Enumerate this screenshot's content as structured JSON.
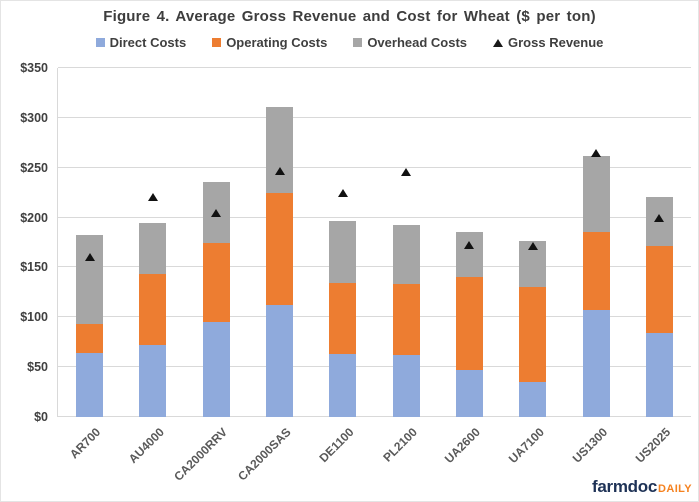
{
  "title": "Figure 4. Average Gross Revenue and Cost for Wheat ($ per ton)",
  "legend": {
    "items": [
      {
        "label": "Direct Costs",
        "marker": "square",
        "color": "#8FAADC"
      },
      {
        "label": "Operating Costs",
        "marker": "square",
        "color": "#ED7D31"
      },
      {
        "label": "Overhead Costs",
        "marker": "square",
        "color": "#A6A6A6"
      },
      {
        "label": "Gross Revenue",
        "marker": "triangle",
        "color": "#111111"
      }
    ]
  },
  "chart_data": {
    "type": "bar",
    "stacked": true,
    "categories": [
      "AR700",
      "AU4000",
      "CA2000RRV",
      "CA2000SAS",
      "DE1100",
      "PL2100",
      "UA2600",
      "UA7100",
      "US1300",
      "US2025"
    ],
    "series": [
      {
        "name": "Direct Costs",
        "type": "bar",
        "color": "#8FAADC",
        "values": [
          64,
          72,
          95,
          112,
          63,
          62,
          47,
          35,
          107,
          84
        ]
      },
      {
        "name": "Operating Costs",
        "type": "bar",
        "color": "#ED7D31",
        "values": [
          29,
          71,
          80,
          113,
          71,
          71,
          93,
          95,
          79,
          88
        ]
      },
      {
        "name": "Overhead Costs",
        "type": "bar",
        "color": "#A6A6A6",
        "values": [
          90,
          52,
          61,
          86,
          63,
          60,
          46,
          47,
          76,
          49
        ]
      },
      {
        "name": "Gross Revenue",
        "type": "scatter",
        "marker": "triangle",
        "color": "#111111",
        "values": [
          160,
          221,
          205,
          247,
          225,
          246,
          173,
          172,
          265,
          200
        ]
      }
    ],
    "stack_totals": [
      183,
      195,
      236,
      311,
      197,
      193,
      186,
      177,
      262,
      221
    ],
    "title": "Figure 4. Average Gross Revenue and Cost for Wheat ($ per ton)",
    "xlabel": "",
    "ylabel": "",
    "ylim": [
      0,
      350
    ],
    "ytick_step": 50,
    "ytick_labels": [
      "$0",
      "$50",
      "$100",
      "$150",
      "$200",
      "$250",
      "$300",
      "$350"
    ],
    "grid": true,
    "legend_position": "top"
  },
  "branding": {
    "farmdoc": "farmdoc",
    "daily": "DAILY",
    "farmdoc_color": "#1e3256",
    "daily_color": "#f58220"
  }
}
